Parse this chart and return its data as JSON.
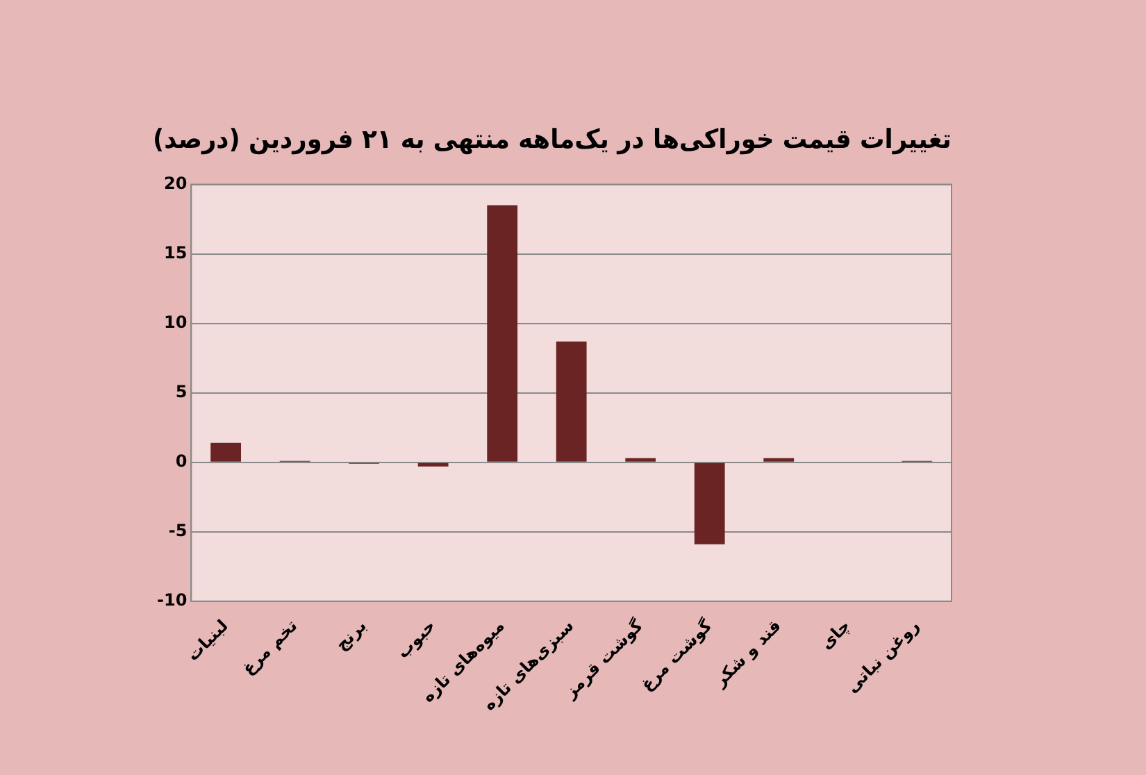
{
  "chart_data": {
    "type": "bar",
    "title": "تغییرات قیمت خوراکی‌ها در یک‌ماهه منتهی به ۲۱ فروردین (درصد)",
    "categories": [
      "لبنیات",
      "تخم مرغ",
      "برنج",
      "حبوب",
      "میوه‌های تازه",
      "سبزی‌های تازه",
      "گوشت قرمز",
      "گوشت مرغ",
      "قند و شکر",
      "چای",
      "روغن نباتی"
    ],
    "values": [
      1.4,
      0.1,
      -0.1,
      -0.3,
      18.5,
      8.7,
      0.3,
      -5.9,
      0.3,
      0,
      0.1
    ],
    "color": "#6b2424",
    "ylim": [
      -10,
      20
    ],
    "yticks": [
      -10,
      -5,
      0,
      5,
      10,
      15,
      20
    ],
    "grid": "y",
    "legend": false
  }
}
